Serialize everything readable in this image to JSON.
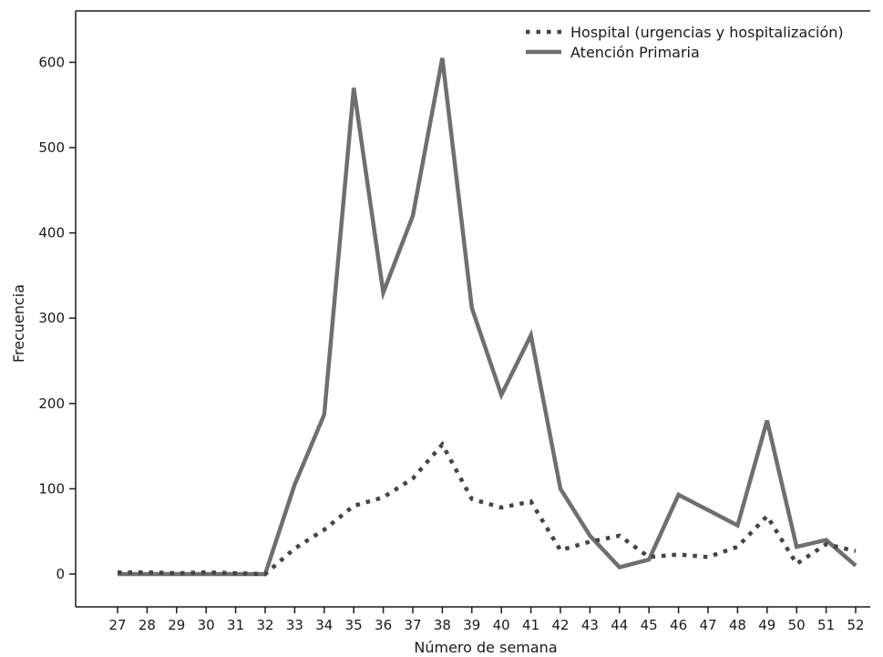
{
  "chart_data": {
    "type": "line",
    "title": "",
    "xlabel": "Número de semana",
    "ylabel": "Frecuencia",
    "x": [
      27,
      28,
      29,
      30,
      31,
      32,
      33,
      34,
      35,
      36,
      37,
      38,
      39,
      40,
      41,
      42,
      43,
      44,
      45,
      46,
      47,
      48,
      49,
      50,
      51,
      52
    ],
    "x_ticks": [
      "27",
      "28",
      "29",
      "30",
      "31",
      "32",
      "33",
      "34",
      "35",
      "36",
      "37",
      "38",
      "39",
      "40",
      "41",
      "42",
      "43",
      "44",
      "45",
      "46",
      "47",
      "48",
      "49",
      "50",
      "51",
      "52"
    ],
    "ylim": [
      -40,
      660
    ],
    "y_ticks": [
      0,
      100,
      200,
      300,
      400,
      500,
      600
    ],
    "y_tick_labels": [
      "0",
      "100",
      "200",
      "300",
      "400",
      "500",
      "600"
    ],
    "legend_position": "top-right",
    "grid": false,
    "series": [
      {
        "name": "Hospital (urgencias y hospitalización)",
        "style": "dotted",
        "color": "#444444",
        "values": [
          2,
          2,
          1,
          2,
          1,
          0,
          30,
          52,
          80,
          90,
          112,
          152,
          88,
          78,
          85,
          28,
          38,
          45,
          20,
          23,
          20,
          32,
          68,
          12,
          35,
          27
        ]
      },
      {
        "name": "Atención Primaria",
        "style": "solid",
        "color": "#6f6f6f",
        "values": [
          0,
          0,
          0,
          0,
          0,
          0,
          105,
          187,
          570,
          330,
          420,
          605,
          312,
          210,
          280,
          100,
          45,
          8,
          17,
          93,
          75,
          57,
          180,
          32,
          40,
          10
        ]
      }
    ]
  }
}
